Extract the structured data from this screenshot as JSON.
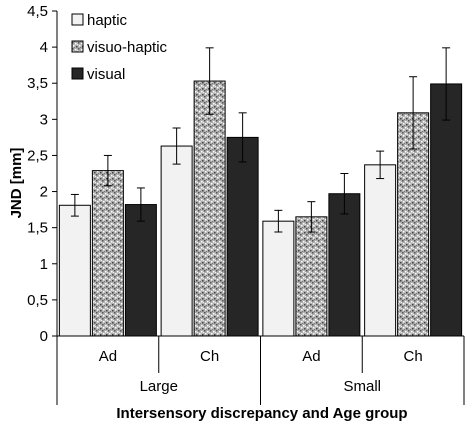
{
  "chart_data": {
    "type": "bar",
    "xlabel": "Intersensory discrepancy and Age group",
    "ylabel": "JND [mm]",
    "ylim": [
      0,
      4.5
    ],
    "yticks": [
      "0",
      "0,5",
      "1",
      "1,5",
      "2",
      "2,5",
      "3",
      "3,5",
      "4",
      "4,5"
    ],
    "grid": false,
    "legend_position": "top-left",
    "categories": [
      "Ad",
      "Ch",
      "Ad",
      "Ch"
    ],
    "groups": [
      {
        "label": "Large",
        "span": [
          0,
          1
        ]
      },
      {
        "label": "Small",
        "span": [
          2,
          3
        ]
      }
    ],
    "series": [
      {
        "name": "haptic",
        "values": [
          1.81,
          2.63,
          1.59,
          2.37
        ],
        "errors": [
          0.15,
          0.25,
          0.15,
          0.19
        ],
        "fill": "#f2f2f2",
        "pattern": "none"
      },
      {
        "name": "visuo-haptic",
        "values": [
          2.29,
          3.53,
          1.65,
          3.09
        ],
        "errors": [
          0.21,
          0.46,
          0.21,
          0.5
        ],
        "fill": "#a8a8a8",
        "pattern": "speckle"
      },
      {
        "name": "visual",
        "values": [
          1.82,
          2.75,
          1.97,
          3.49
        ],
        "errors": [
          0.23,
          0.34,
          0.28,
          0.5
        ],
        "fill": "#262626",
        "pattern": "none"
      }
    ]
  }
}
